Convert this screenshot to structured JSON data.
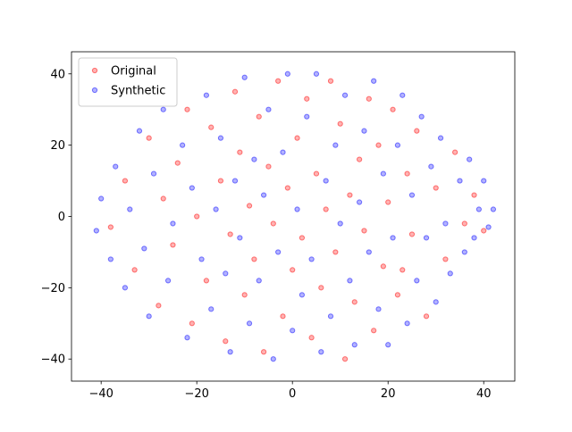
{
  "chart_data": {
    "type": "scatter",
    "xlim": [
      -46.2,
      46.5
    ],
    "ylim": [
      -46.2,
      46.2
    ],
    "xticks": [
      {
        "value": -40,
        "label": "−40"
      },
      {
        "value": -20,
        "label": "−20"
      },
      0,
      20,
      40
    ],
    "yticks": [
      {
        "value": -40,
        "label": "−40"
      },
      {
        "value": -20,
        "label": "−20"
      },
      0,
      20,
      40
    ],
    "legend": "upper left",
    "alpha": 0.3,
    "series": [
      {
        "name": "Original",
        "color": "#ff0000",
        "x": [
          -38,
          -35,
          -33,
          -30,
          -28,
          -27,
          -25,
          -24,
          -22,
          -21,
          -20,
          -18,
          -17,
          -15,
          -14,
          -13,
          -12,
          -11,
          -10,
          -9,
          -8,
          -7,
          -6,
          -5,
          -4,
          -3,
          -2,
          -1,
          0,
          1,
          2,
          3,
          4,
          5,
          6,
          7,
          8,
          9,
          10,
          11,
          12,
          13,
          14,
          15,
          16,
          17,
          18,
          19,
          20,
          21,
          22,
          23,
          24,
          25,
          26,
          28,
          30,
          32,
          34,
          36,
          38,
          40
        ],
        "values": [
          -3,
          10,
          -15,
          22,
          -25,
          5,
          -8,
          15,
          30,
          -30,
          0,
          -18,
          25,
          10,
          -35,
          -5,
          35,
          18,
          -22,
          3,
          -12,
          28,
          -38,
          14,
          -2,
          38,
          -28,
          8,
          -15,
          22,
          -6,
          33,
          -34,
          12,
          -20,
          2,
          38,
          -10,
          26,
          -40,
          6,
          -24,
          16,
          -4,
          33,
          -32,
          20,
          -14,
          4,
          30,
          -22,
          -15,
          12,
          -5,
          24,
          -28,
          8,
          -12,
          18,
          -2,
          6,
          -4
        ]
      },
      {
        "name": "Synthetic",
        "color": "#0000ff",
        "x": [
          -41,
          -40,
          -38,
          -37,
          -35,
          -34,
          -32,
          -31,
          -30,
          -29,
          -27,
          -26,
          -25,
          -23,
          -22,
          -21,
          -19,
          -18,
          -17,
          -16,
          -15,
          -14,
          -13,
          -12,
          -11,
          -10,
          -9,
          -8,
          -7,
          -6,
          -5,
          -4,
          -3,
          -2,
          -1,
          0,
          1,
          2,
          3,
          4,
          5,
          6,
          7,
          8,
          9,
          10,
          11,
          12,
          13,
          14,
          15,
          16,
          17,
          18,
          19,
          20,
          21,
          22,
          23,
          24,
          25,
          26,
          27,
          28,
          29,
          30,
          31,
          32,
          33,
          35,
          36,
          37,
          38,
          39,
          40,
          41,
          42
        ],
        "values": [
          -4,
          5,
          -12,
          14,
          -20,
          2,
          24,
          -9,
          -28,
          12,
          30,
          -18,
          -2,
          20,
          -34,
          8,
          -12,
          34,
          -26,
          2,
          22,
          -16,
          -38,
          10,
          -6,
          39,
          -30,
          16,
          -18,
          6,
          30,
          -40,
          -10,
          18,
          40,
          -32,
          2,
          -22,
          28,
          -12,
          40,
          -38,
          10,
          -28,
          20,
          -2,
          34,
          -18,
          -36,
          4,
          24,
          -10,
          38,
          -26,
          12,
          -36,
          -6,
          20,
          34,
          -30,
          6,
          -18,
          28,
          -6,
          14,
          -24,
          22,
          -2,
          -16,
          10,
          -10,
          16,
          -6,
          2,
          10,
          -3,
          2
        ]
      }
    ]
  }
}
